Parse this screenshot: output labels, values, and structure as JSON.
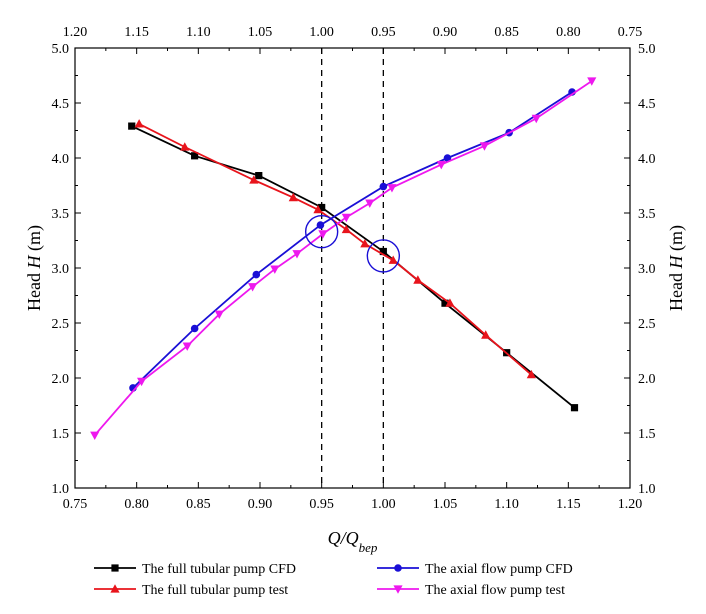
{
  "chart_data": {
    "type": "line",
    "xlabel": "Q/Qbep",
    "ylabel_left": "Head H (m)",
    "ylabel_right": "Head H (m)",
    "xlim": [
      0.75,
      1.2
    ],
    "ylim": [
      1.0,
      5.0
    ],
    "x_ticks": [
      "0.75",
      "0.80",
      "0.85",
      "0.90",
      "0.95",
      "1.00",
      "1.05",
      "1.10",
      "1.15",
      "1.20"
    ],
    "top_ticks": [
      "1.20",
      "1.15",
      "1.10",
      "1.05",
      "1.00",
      "0.95",
      "0.90",
      "0.85",
      "0.80",
      "0.75"
    ],
    "y_ticks": [
      "1.0",
      "1.5",
      "2.0",
      "2.5",
      "3.0",
      "3.5",
      "4.0",
      "4.5",
      "5.0"
    ],
    "reference_lines_x": [
      0.95,
      1.0
    ],
    "circles": [
      {
        "x": 0.95,
        "y": 3.33
      },
      {
        "x": 1.0,
        "y": 3.11
      }
    ],
    "grid": false,
    "legend_position": "bottom",
    "series": [
      {
        "name": "The full tubular pump CFD",
        "color": "#000000",
        "marker": "square",
        "x": [
          0.796,
          0.847,
          0.899,
          0.95,
          1.0,
          1.05,
          1.1,
          1.155
        ],
        "y": [
          4.29,
          4.02,
          3.84,
          3.55,
          3.15,
          2.68,
          2.23,
          1.73
        ]
      },
      {
        "name": "The full tubular pump test",
        "color": "#e8141c",
        "marker": "triangle-up",
        "x": [
          0.802,
          0.839,
          0.895,
          0.927,
          0.947,
          0.97,
          0.985,
          1.008,
          1.028,
          1.054,
          1.083,
          1.12
        ],
        "y": [
          4.31,
          4.1,
          3.8,
          3.64,
          3.53,
          3.35,
          3.22,
          3.07,
          2.89,
          2.68,
          2.39,
          2.03
        ]
      },
      {
        "name": "The axial flow pump CFD",
        "color": "#1a0fd6",
        "marker": "circle",
        "x": [
          0.797,
          0.847,
          0.897,
          0.949,
          1.0,
          1.052,
          1.102,
          1.153
        ],
        "y": [
          1.91,
          2.45,
          2.94,
          3.39,
          3.74,
          4.0,
          4.23,
          4.6
        ]
      },
      {
        "name": "The axial flow pump test",
        "color": "#ee18ee",
        "marker": "triangle-down",
        "x": [
          0.766,
          0.804,
          0.841,
          0.867,
          0.894,
          0.912,
          0.93,
          0.951,
          0.97,
          0.989,
          1.007,
          1.047,
          1.082,
          1.124,
          1.169
        ],
        "y": [
          1.48,
          1.97,
          2.29,
          2.58,
          2.83,
          2.99,
          3.13,
          3.31,
          3.46,
          3.59,
          3.73,
          3.94,
          4.11,
          4.36,
          4.7
        ]
      }
    ]
  }
}
